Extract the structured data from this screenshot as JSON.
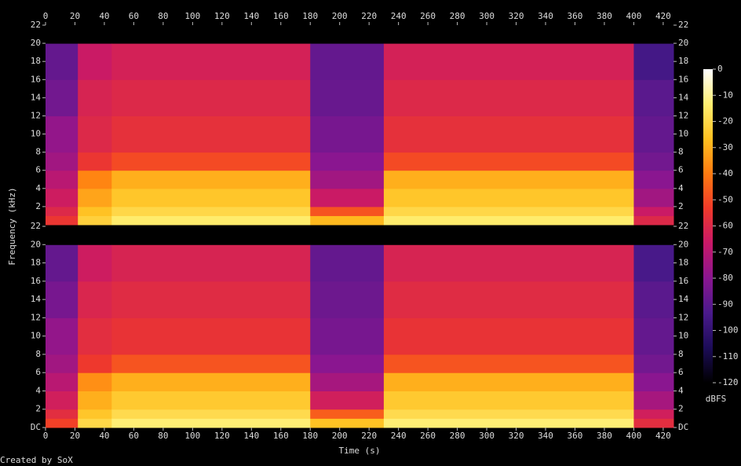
{
  "chart_data": {
    "type": "heatmap",
    "xlabel": "Time (s)",
    "ylabel": "Frequency (kHz)",
    "colorbar_label": "dBFS",
    "footer": "Created by SoX",
    "xlim": [
      0,
      427
    ],
    "xticks": [
      0,
      20,
      40,
      60,
      80,
      100,
      120,
      140,
      160,
      180,
      200,
      220,
      240,
      260,
      280,
      300,
      320,
      340,
      360,
      380,
      400,
      420
    ],
    "clim": [
      -120,
      0
    ],
    "cticks": [
      0,
      -10,
      -20,
      -30,
      -40,
      -50,
      -60,
      -70,
      -80,
      -90,
      -100,
      -110,
      -120
    ],
    "colormap": [
      "#000000",
      "#1c0c58",
      "#4a1a8c",
      "#8a1690",
      "#c81868",
      "#f03a2a",
      "#ff7a10",
      "#ffc020",
      "#ffee70",
      "#ffffff"
    ],
    "x_edges": [
      0,
      22,
      45,
      180,
      230,
      400,
      427
    ],
    "y_edges": [
      0,
      1,
      2,
      4,
      6,
      8,
      12,
      16,
      20,
      22
    ],
    "panels": [
      {
        "ylim": [
          0,
          22
        ],
        "yticks": [
          2,
          4,
          6,
          8,
          10,
          12,
          14,
          16,
          18,
          20,
          22
        ],
        "values": [
          [
            -55,
            -60,
            -65,
            -70,
            -75,
            -78,
            -85,
            -88,
            -120
          ],
          [
            -22,
            -26,
            -32,
            -38,
            -55,
            -60,
            -62,
            -66,
            -120
          ],
          [
            -14,
            -20,
            -25,
            -30,
            -50,
            -57,
            -60,
            -63,
            -120
          ],
          [
            -28,
            -48,
            -66,
            -75,
            -80,
            -84,
            -87,
            -88,
            -120
          ],
          [
            -14,
            -20,
            -25,
            -30,
            -50,
            -57,
            -60,
            -63,
            -120
          ],
          [
            -60,
            -66,
            -75,
            -80,
            -85,
            -88,
            -90,
            -95,
            -120
          ]
        ]
      },
      {
        "ylim": [
          0,
          22
        ],
        "yticks": [
          {
            "value": 0,
            "label": "DC"
          },
          2,
          4,
          6,
          8,
          10,
          12,
          14,
          16,
          18,
          20,
          22
        ],
        "values": [
          [
            -52,
            -58,
            -64,
            -70,
            -75,
            -78,
            -84,
            -88,
            -120
          ],
          [
            -20,
            -25,
            -30,
            -36,
            -54,
            -58,
            -61,
            -65,
            -120
          ],
          [
            -13,
            -19,
            -24,
            -30,
            -48,
            -56,
            -59,
            -62,
            -120
          ],
          [
            -26,
            -46,
            -64,
            -74,
            -80,
            -84,
            -86,
            -88,
            -120
          ],
          [
            -13,
            -19,
            -24,
            -30,
            -48,
            -56,
            -59,
            -62,
            -120
          ],
          [
            -58,
            -64,
            -74,
            -80,
            -85,
            -88,
            -90,
            -94,
            -120
          ]
        ]
      }
    ]
  }
}
